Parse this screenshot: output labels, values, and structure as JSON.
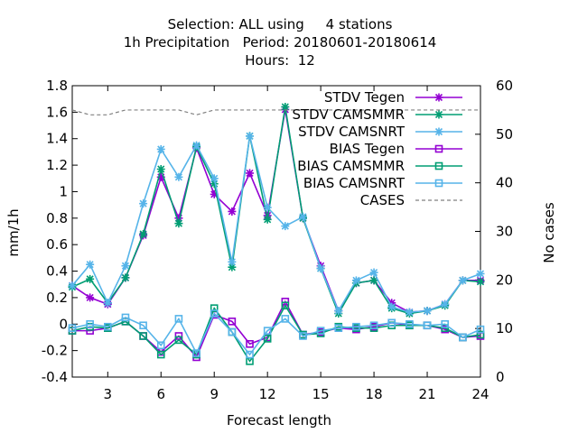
{
  "chart_data": {
    "type": "line",
    "title_lines": [
      "Selection: ALL using     4 stations",
      "1h Precipitation   Period: 20180601-20180614",
      "Hours:  12"
    ],
    "xlabel": "Forecast length",
    "ylabel": "mm/1h",
    "y2label": "No cases",
    "xlim": [
      1,
      24
    ],
    "ylim": [
      -0.4,
      1.8
    ],
    "y2lim": [
      0,
      60
    ],
    "x_ticks": [
      3,
      6,
      9,
      12,
      15,
      18,
      21,
      24
    ],
    "x_tick_labels": [
      "3",
      "6",
      "9",
      "12",
      "15",
      "18",
      "21",
      "24"
    ],
    "y_ticks": [
      -0.4,
      -0.2,
      0,
      0.2,
      0.4,
      0.6,
      0.8,
      1,
      1.2,
      1.4,
      1.6,
      1.8
    ],
    "y_tick_labels": [
      "-0.4",
      "-0.2",
      "0",
      "0.2",
      "0.4",
      "0.6",
      "0.8",
      "1",
      "1.2",
      "1.4",
      "1.6",
      "1.8"
    ],
    "y2_ticks": [
      0,
      10,
      20,
      30,
      40,
      50,
      60
    ],
    "y2_tick_labels": [
      "0",
      "10",
      "20",
      "30",
      "40",
      "50",
      "60"
    ],
    "grid": false,
    "legend_position": "top-right",
    "x": [
      1,
      2,
      3,
      4,
      5,
      6,
      7,
      8,
      9,
      10,
      11,
      12,
      13,
      14,
      15,
      16,
      17,
      18,
      19,
      20,
      21,
      22,
      23,
      24
    ],
    "series": [
      {
        "name": "STDV Tegen",
        "color": "#9400d3",
        "marker": "x-star",
        "axis": "left",
        "values": [
          0.29,
          0.2,
          0.15,
          0.35,
          0.67,
          1.11,
          0.8,
          1.33,
          0.98,
          0.85,
          1.14,
          0.82,
          1.62,
          0.8,
          0.44,
          0.1,
          0.31,
          0.33,
          0.16,
          0.09,
          0.1,
          0.15,
          0.33,
          0.33
        ]
      },
      {
        "name": "STDV CAMSMMR",
        "color": "#009e73",
        "marker": "x-star",
        "axis": "left",
        "values": [
          0.28,
          0.34,
          0.16,
          0.35,
          0.68,
          1.17,
          0.76,
          1.34,
          1.06,
          0.43,
          1.42,
          0.79,
          1.64,
          0.8,
          0.42,
          0.08,
          0.31,
          0.33,
          0.12,
          0.08,
          0.1,
          0.14,
          0.33,
          0.32
        ]
      },
      {
        "name": "STDV CAMSNRT",
        "color": "#56b4e9",
        "marker": "x-star",
        "axis": "left",
        "values": [
          0.29,
          0.45,
          0.16,
          0.44,
          0.91,
          1.32,
          1.11,
          1.35,
          1.1,
          0.47,
          1.42,
          0.88,
          0.74,
          0.81,
          0.42,
          0.1,
          0.33,
          0.39,
          0.13,
          0.09,
          0.1,
          0.15,
          0.33,
          0.38
        ]
      },
      {
        "name": "BIAS Tegen",
        "color": "#9400d3",
        "marker": "square",
        "axis": "left",
        "values": [
          -0.05,
          -0.05,
          -0.03,
          0.02,
          -0.09,
          -0.21,
          -0.09,
          -0.25,
          0.07,
          0.02,
          -0.15,
          -0.1,
          0.17,
          -0.08,
          -0.06,
          -0.03,
          -0.04,
          -0.02,
          0.01,
          -0.01,
          -0.01,
          -0.04,
          -0.1,
          -0.09
        ]
      },
      {
        "name": "BIAS CAMSMMR",
        "color": "#009e73",
        "marker": "square",
        "axis": "left",
        "values": [
          -0.05,
          -0.02,
          -0.03,
          0.02,
          -0.09,
          -0.23,
          -0.12,
          -0.23,
          0.12,
          -0.06,
          -0.28,
          -0.11,
          0.14,
          -0.08,
          -0.07,
          -0.02,
          -0.03,
          -0.03,
          -0.01,
          -0.01,
          -0.01,
          -0.03,
          -0.1,
          -0.08
        ]
      },
      {
        "name": "BIAS CAMSNRT",
        "color": "#56b4e9",
        "marker": "square",
        "axis": "left",
        "values": [
          -0.03,
          0.0,
          -0.02,
          0.05,
          -0.01,
          -0.16,
          0.04,
          -0.22,
          0.08,
          -0.06,
          -0.23,
          -0.05,
          0.04,
          -0.09,
          -0.05,
          -0.03,
          -0.02,
          -0.01,
          0.01,
          0.0,
          -0.01,
          0.0,
          -0.1,
          -0.04
        ]
      },
      {
        "name": "CASES",
        "color": "#808080",
        "marker": "none",
        "dash": true,
        "axis": "right",
        "values": [
          55,
          54,
          54,
          55,
          55,
          55,
          55,
          54,
          55,
          55,
          55,
          55,
          55,
          55,
          55,
          55,
          55,
          55,
          55,
          55,
          55,
          55,
          55,
          55
        ]
      }
    ]
  }
}
